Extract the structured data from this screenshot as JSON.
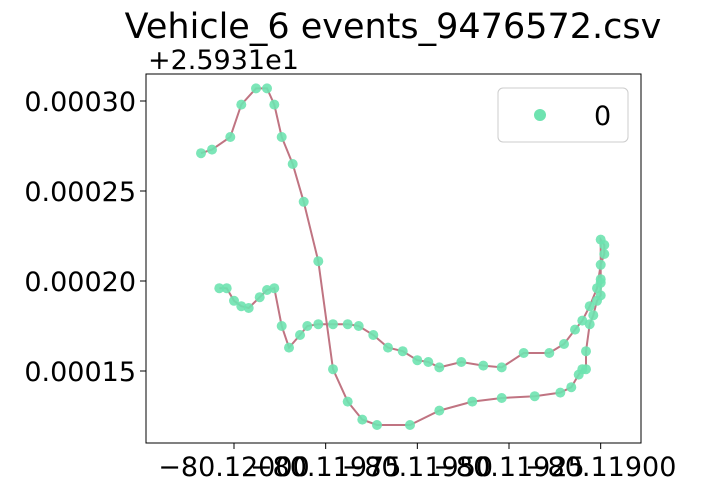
{
  "colors": {
    "point": "#6ee3b0",
    "line": "#c07482",
    "axis": "#000000",
    "background": "#ffffff"
  },
  "chart_data": {
    "type": "scatter",
    "title": "Vehicle_6 events_9476572.csv",
    "y_offset_label": "+2.5931e1",
    "xlabel": "",
    "ylabel": "",
    "xlim": [
      -80.12024,
      -80.11889
    ],
    "ylim": [
      0.00011,
      0.000315
    ],
    "x_tick_labels": [
      "−80.12000",
      "−80.11975",
      "−80.11950",
      "−80.11925",
      "−80.11900"
    ],
    "x_ticks": [
      -80.12,
      -80.11975,
      -80.1195,
      -80.11925,
      -80.119
    ],
    "y_tick_labels": [
      "0.00015",
      "0.00020",
      "0.00025",
      "0.00030"
    ],
    "y_ticks": [
      0.00015,
      0.0002,
      0.00025,
      0.0003
    ],
    "legend": {
      "entries": [
        "0"
      ],
      "placement": "top-right"
    },
    "grid": false,
    "series": [
      {
        "name": "0",
        "style": "markers+line",
        "x": [
          -80.12009,
          -80.12006,
          -80.12001,
          -80.11998,
          -80.11994,
          -80.11991,
          -80.11989,
          -80.11987,
          -80.11984,
          -80.11981,
          -80.11977,
          -80.11973,
          -80.11969,
          -80.11965,
          -80.11961,
          -80.11952,
          -80.11944,
          -80.11935,
          -80.11927,
          -80.11918,
          -80.11911,
          -80.11908,
          -80.11906,
          -80.11905,
          -80.11904,
          -80.11904,
          -80.11903,
          -80.11902,
          -80.11901,
          -80.119,
          -80.119,
          -80.119,
          -80.119,
          -80.11899,
          -80.11899,
          -80.119,
          -80.11901,
          -80.11903,
          -80.11905,
          -80.11907,
          -80.1191,
          -80.11914,
          -80.11921,
          -80.11927,
          -80.11932,
          -80.11938,
          -80.11944,
          -80.11947,
          -80.1195,
          -80.11954,
          -80.11958,
          -80.11962,
          -80.11966,
          -80.11969,
          -80.11973,
          -80.11977,
          -80.1198,
          -80.11982,
          -80.11985,
          -80.11987,
          -80.11989,
          -80.11991,
          -80.11993,
          -80.11996,
          -80.11998,
          -80.12,
          -80.12002,
          -80.12004
        ],
        "y": [
          0.000271,
          0.000273,
          0.00028,
          0.000298,
          0.000307,
          0.000307,
          0.000298,
          0.00028,
          0.000265,
          0.000244,
          0.000211,
          0.000151,
          0.000133,
          0.000123,
          0.00012,
          0.00012,
          0.000128,
          0.000133,
          0.000135,
          0.000136,
          0.000138,
          0.000141,
          0.000148,
          0.000151,
          0.000151,
          0.000161,
          0.000176,
          0.000181,
          0.000189,
          0.000192,
          0.000199,
          0.000201,
          0.000223,
          0.00022,
          0.000215,
          0.000209,
          0.000196,
          0.000186,
          0.000178,
          0.000173,
          0.000165,
          0.00016,
          0.00016,
          0.000152,
          0.000153,
          0.000155,
          0.000152,
          0.000155,
          0.000156,
          0.000161,
          0.000163,
          0.00017,
          0.000175,
          0.000176,
          0.000176,
          0.000176,
          0.000175,
          0.00017,
          0.000163,
          0.000175,
          0.000196,
          0.000195,
          0.000191,
          0.000185,
          0.000186,
          0.000189,
          0.000196,
          0.000196
        ],
        "order": "connected in listed sequence"
      }
    ]
  }
}
